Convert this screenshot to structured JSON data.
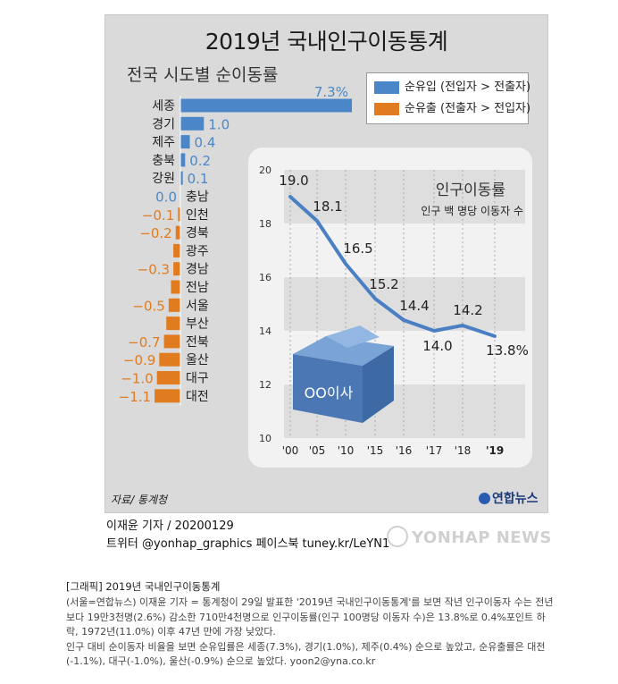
{
  "graphic": {
    "title": "2019년 국내인구이동통계",
    "source": "자료/ 통계청",
    "logo": "연합뉴스"
  },
  "legend": {
    "inflow": "순유입 (전입자 > 전출자)",
    "outflow": "순유출 (전출자 > 전입자)",
    "inflow_color": "#4a86c8",
    "outflow_color": "#e07b1f"
  },
  "chart_data": [
    {
      "type": "bar",
      "title": "전국 시도별 순이동률",
      "categories": [
        "세종",
        "경기",
        "제주",
        "충북",
        "강원",
        "충남",
        "인천",
        "경북",
        "광주",
        "경남",
        "전남",
        "서울",
        "부산",
        "전북",
        "울산",
        "대구",
        "대전"
      ],
      "values": [
        7.3,
        1.0,
        0.4,
        0.2,
        0.1,
        0.0,
        -0.1,
        -0.2,
        -0.3,
        -0.3,
        -0.4,
        -0.5,
        -0.6,
        -0.7,
        -0.9,
        -1.0,
        -1.1
      ],
      "value_labels": [
        "7.3%",
        "1.0",
        "0.4",
        "0.2",
        "0.1",
        "0.0",
        "−0.1",
        "−0.2",
        "",
        "−0.3",
        "",
        "−0.5",
        "",
        "−0.7",
        "−0.9",
        "−1.0",
        "−1.1"
      ],
      "colors": {
        "positive": "#4a86c8",
        "negative": "#e07b1f"
      }
    },
    {
      "type": "line",
      "title": "인구이동률",
      "subtitle": "인구 백 명당 이동자 수",
      "x": [
        "'00",
        "'05",
        "'10",
        "'15",
        "'16",
        "'17",
        "'18",
        "'19"
      ],
      "values": [
        19.0,
        18.1,
        16.5,
        15.2,
        14.4,
        14.0,
        14.2,
        13.8
      ],
      "value_labels": [
        "19.0",
        "18.1",
        "16.5",
        "15.2",
        "14.4",
        "14.0",
        "14.2",
        "13.8%"
      ],
      "y_ticks": [
        "20",
        "18",
        "16",
        "14",
        "12",
        "10"
      ],
      "ylim": [
        10,
        20
      ],
      "color": "#4a7fc4",
      "box_label": "OO이사"
    }
  ],
  "credits": {
    "author": "이재윤 기자 / 20200129",
    "social": "트위터 @yonhap_graphics  페이스북 tuney.kr/LeYN1",
    "watermark": "YONHAP NEWS"
  },
  "caption": {
    "title": "[그래픽] 2019년 국내인구이동통계",
    "para1": "(서울=연합뉴스) 이재윤 기자 = 통계청이 29일 발표한 '2019년 국내인구이동통계'를 보면 작년 인구이동자 수는 전년보다 19만3천명(2.6%) 감소한 710만4천명으로 인구이동률(인구 100명당 이동자 수)은 13.8%로 0.4%포인트 하락, 1972년(11.0%) 이후 47년 만에 가장 낮았다.",
    "para2": "인구 대비 순이동자 비율을 보면 순유입률은 세종(7.3%), 경기(1.0%), 제주(0.4%) 순으로 높았고, 순유출률은 대전(-1.1%), 대구(-1.0%), 울산(-0.9%) 순으로 높았다. yoon2@yna.co.kr"
  }
}
